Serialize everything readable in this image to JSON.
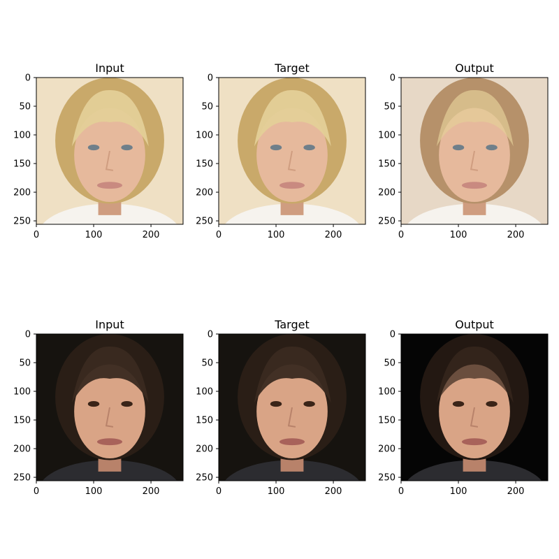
{
  "figure": {
    "background": "#ffffff",
    "rows": [
      {
        "face_palette": {
          "bg": "#efe0c4",
          "hair": "#c9a96a",
          "hair_light": "#e4cf98",
          "skin": "#e6b99c",
          "skin_shadow": "#cf9d80",
          "eyes": "#6f7f8a",
          "lips": "#c98a80",
          "shirt": "#f6f3ee",
          "output_bg": "#e7d8c6",
          "output_hair": "#b6916a"
        },
        "panels": [
          {
            "title": "Input",
            "variant": "input"
          },
          {
            "title": "Target",
            "variant": "target"
          },
          {
            "title": "Output",
            "variant": "output"
          }
        ]
      },
      {
        "face_palette": {
          "bg": "#16130f",
          "hair": "#2a1e16",
          "hair_light": "#3a2a20",
          "skin": "#d9a486",
          "skin_shadow": "#b8826a",
          "eyes": "#3a2418",
          "lips": "#a8625a",
          "shirt": "#2c2c30",
          "output_bg": "#050505",
          "output_hair": "#231812"
        },
        "panels": [
          {
            "title": "Input",
            "variant": "input"
          },
          {
            "title": "Target",
            "variant": "target"
          },
          {
            "title": "Output",
            "variant": "output"
          }
        ]
      }
    ]
  },
  "chart_data": [
    {
      "type": "image",
      "title": "Input",
      "xlim": [
        0,
        256
      ],
      "ylim": [
        256,
        0
      ],
      "xticks": [
        0,
        100,
        200
      ],
      "yticks": [
        0,
        50,
        100,
        150,
        200,
        250
      ]
    },
    {
      "type": "image",
      "title": "Target",
      "xlim": [
        0,
        256
      ],
      "ylim": [
        256,
        0
      ],
      "xticks": [
        0,
        100,
        200
      ],
      "yticks": [
        0,
        50,
        100,
        150,
        200,
        250
      ]
    },
    {
      "type": "image",
      "title": "Output",
      "xlim": [
        0,
        256
      ],
      "ylim": [
        256,
        0
      ],
      "xticks": [
        0,
        100,
        200
      ],
      "yticks": [
        0,
        50,
        100,
        150,
        200,
        250
      ]
    },
    {
      "type": "image",
      "title": "Input",
      "xlim": [
        0,
        256
      ],
      "ylim": [
        256,
        0
      ],
      "xticks": [
        0,
        100,
        200
      ],
      "yticks": [
        0,
        50,
        100,
        150,
        200,
        250
      ]
    },
    {
      "type": "image",
      "title": "Target",
      "xlim": [
        0,
        256
      ],
      "ylim": [
        256,
        0
      ],
      "xticks": [
        0,
        100,
        200
      ],
      "yticks": [
        0,
        50,
        100,
        150,
        200,
        250
      ]
    },
    {
      "type": "image",
      "title": "Output",
      "xlim": [
        0,
        256
      ],
      "ylim": [
        256,
        0
      ],
      "xticks": [
        0,
        100,
        200
      ],
      "yticks": [
        0,
        50,
        100,
        150,
        200,
        250
      ]
    }
  ]
}
